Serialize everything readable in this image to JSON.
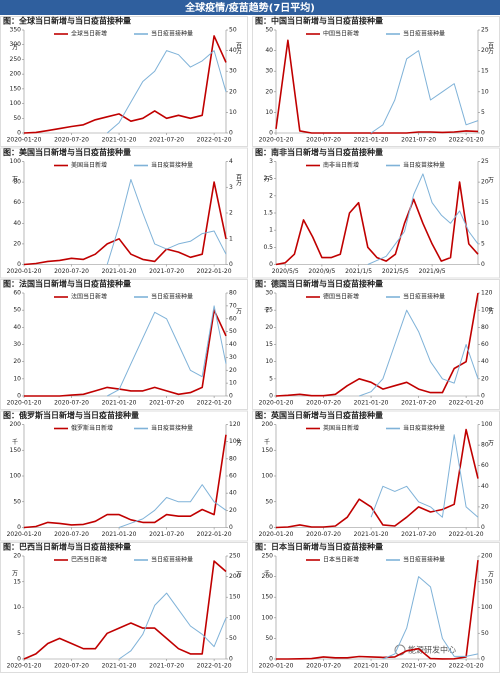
{
  "header": {
    "title": "全球疫情/疫苗趋势(7日平均)"
  },
  "watermark": "能源研发中心",
  "chart_data": [
    {
      "type": "line",
      "title": "图：全球当日新增与当日疫苗接种量",
      "categories": [
        "2020-01-20",
        null,
        null,
        null,
        "2020-07-20",
        null,
        null,
        null,
        "2021-01-20",
        null,
        null,
        null,
        "2021-07-20",
        null,
        null,
        null,
        "2022-01-20",
        null
      ],
      "series": [
        {
          "name": "全球当日新增",
          "color": "#c00000",
          "values": [
            0,
            2,
            8,
            15,
            22,
            28,
            45,
            55,
            65,
            40,
            50,
            75,
            50,
            60,
            50,
            60,
            330,
            240
          ]
        },
        {
          "name": "当日疫苗接种量",
          "color": "#7fb2d8",
          "axis": "y2",
          "values": [
            null,
            null,
            null,
            null,
            null,
            null,
            null,
            0,
            5,
            15,
            25,
            30,
            40,
            38,
            32,
            35,
            40,
            20
          ]
        }
      ],
      "ylim": [
        0,
        350
      ],
      "yticks": [
        0,
        50,
        100,
        150,
        200,
        250,
        300,
        350
      ],
      "y_unit": "万",
      "y2lim": [
        0,
        50
      ],
      "y2ticks": [
        0,
        10,
        20,
        30,
        40,
        50
      ],
      "y2_unit": "百万"
    },
    {
      "type": "line",
      "title": "图：中国当日新增与当日疫苗接种量",
      "categories": [
        "2020-01-20",
        null,
        null,
        null,
        "2020-07-20",
        null,
        null,
        null,
        "2021-01-20",
        null,
        null,
        null,
        "2021-07-20",
        null,
        null,
        null,
        "2022-01-20",
        null
      ],
      "series": [
        {
          "name": "中国当日新增",
          "color": "#c00000",
          "values": [
            2,
            45,
            1,
            0,
            0,
            0,
            0,
            0,
            0,
            0,
            0,
            0,
            0.5,
            0.5,
            0.3,
            0.5,
            1,
            0.8
          ]
        },
        {
          "name": "当日疫苗接种量",
          "color": "#7fb2d8",
          "axis": "y2",
          "values": [
            null,
            null,
            null,
            null,
            null,
            null,
            null,
            null,
            0,
            2,
            8,
            18,
            20,
            8,
            10,
            12,
            2,
            3
          ]
        }
      ],
      "ylim": [
        0,
        50
      ],
      "yticks": [
        0,
        10,
        20,
        30,
        40,
        50
      ],
      "y2lim": [
        0,
        25
      ],
      "y2ticks": [
        0,
        5,
        10,
        15,
        20,
        25
      ],
      "y2_unit": "百万"
    },
    {
      "type": "line",
      "title": "图：美国当日新增与当日疫苗接种量",
      "categories": [
        "2020-01-20",
        null,
        null,
        null,
        "2020-07-20",
        null,
        null,
        null,
        "2021-01-20",
        null,
        null,
        null,
        "2021-07-20",
        null,
        null,
        null,
        "2022-01-20",
        null
      ],
      "series": [
        {
          "name": "美国当日新增",
          "color": "#c00000",
          "values": [
            0,
            1,
            3,
            4,
            6,
            5,
            10,
            20,
            25,
            10,
            5,
            3,
            15,
            12,
            7,
            10,
            80,
            25
          ]
        },
        {
          "name": "当日疫苗接种量",
          "color": "#7fb2d8",
          "axis": "y2",
          "values": [
            null,
            null,
            null,
            null,
            null,
            null,
            null,
            0,
            1.5,
            3.3,
            2,
            0.8,
            0.6,
            0.8,
            0.9,
            1.2,
            1.3,
            0.4
          ]
        }
      ],
      "ylim": [
        0,
        100
      ],
      "yticks": [
        0,
        20,
        40,
        60,
        80,
        100
      ],
      "y_unit": "万",
      "y2lim": [
        0,
        4
      ],
      "y2ticks": [
        0,
        1,
        2,
        3,
        4
      ],
      "y2_unit": "百万"
    },
    {
      "type": "line",
      "title": "图：南非当日新增与当日疫苗接种量",
      "categories": [
        null,
        "2020/5/5",
        null,
        null,
        null,
        "2020/9/5",
        null,
        null,
        null,
        "2021/1/5",
        null,
        null,
        null,
        "2021/5/5",
        null,
        null,
        null,
        "2021/9/5",
        null,
        null,
        null,
        null,
        null
      ],
      "series": [
        {
          "name": "南非当日新增",
          "color": "#c00000",
          "values": [
            0,
            0.05,
            0.3,
            1.3,
            0.8,
            0.2,
            0.2,
            0.3,
            1.5,
            1.8,
            0.5,
            0.2,
            0.1,
            0.3,
            1.2,
            1.9,
            1.2,
            0.6,
            0.1,
            0.2,
            2.4,
            0.6,
            0.3
          ]
        },
        {
          "name": "当日疫苗接种量",
          "color": "#7fb2d8",
          "axis": "y2",
          "values": [
            null,
            null,
            null,
            null,
            null,
            null,
            null,
            null,
            null,
            null,
            0,
            1,
            2,
            5,
            8,
            17,
            22,
            15,
            12,
            10,
            13,
            8,
            5
          ]
        }
      ],
      "ylim": [
        0,
        3
      ],
      "yticks": [
        0,
        0.5,
        1,
        1.5,
        2,
        2.5,
        3
      ],
      "y_unit": "万",
      "y2lim": [
        0,
        25
      ],
      "y2ticks": [
        0,
        5,
        10,
        15,
        20,
        25
      ],
      "y2_unit": "万"
    },
    {
      "type": "line",
      "title": "图：法国当日新增与当日疫苗接种量",
      "categories": [
        "2020-01-20",
        null,
        null,
        null,
        "2020-07-20",
        null,
        null,
        null,
        "2021-01-20",
        null,
        null,
        null,
        "2021-07-20",
        null,
        null,
        null,
        "2022-01-20",
        null
      ],
      "series": [
        {
          "name": "法国当日新增",
          "color": "#c00000",
          "values": [
            0,
            0,
            0,
            0,
            0.5,
            1,
            3,
            5,
            4,
            3,
            3,
            5,
            3,
            1,
            2,
            5,
            50,
            35
          ]
        },
        {
          "name": "当日疫苗接种量",
          "color": "#7fb2d8",
          "axis": "y2",
          "values": [
            null,
            null,
            null,
            null,
            null,
            null,
            null,
            0,
            5,
            25,
            45,
            65,
            60,
            40,
            20,
            15,
            70,
            25
          ]
        }
      ],
      "ylim": [
        0,
        60
      ],
      "yticks": [
        0,
        10,
        20,
        30,
        40,
        50,
        60
      ],
      "y2lim": [
        0,
        80
      ],
      "y2ticks": [
        0,
        10,
        20,
        30,
        40,
        50,
        60,
        70,
        80
      ],
      "y2_unit": "万"
    },
    {
      "type": "line",
      "title": "图：德国当日新增与当日疫苗接种量",
      "categories": [
        "2020-01-20",
        null,
        null,
        null,
        "2020-07-20",
        null,
        null,
        null,
        "2021-01-20",
        null,
        null,
        null,
        "2021-07-20",
        null,
        null,
        null,
        "2022-01-20",
        null
      ],
      "series": [
        {
          "name": "德国当日新增",
          "color": "#c00000",
          "values": [
            0,
            0.2,
            0.5,
            0.1,
            0.1,
            0.5,
            3,
            5,
            4,
            2,
            3,
            4,
            2,
            1,
            1,
            8,
            10,
            30
          ]
        },
        {
          "name": "当日疫苗接种量",
          "color": "#7fb2d8",
          "axis": "y2",
          "values": [
            null,
            null,
            null,
            null,
            null,
            null,
            null,
            0,
            5,
            20,
            60,
            100,
            75,
            40,
            20,
            15,
            60,
            20
          ]
        }
      ],
      "ylim": [
        0,
        30
      ],
      "yticks": [
        0,
        5,
        10,
        15,
        20,
        25,
        30
      ],
      "y_unit": "千",
      "y2lim": [
        0,
        120
      ],
      "y2ticks": [
        0,
        20,
        40,
        60,
        80,
        100,
        120
      ],
      "y2_unit": "万"
    },
    {
      "type": "line",
      "title": "图：俄罗斯当日新增与当日疫苗接种量",
      "categories": [
        "2020-01-20",
        null,
        null,
        null,
        "2020-07-20",
        null,
        null,
        null,
        "2021-01-20",
        null,
        null,
        null,
        "2021-07-20",
        null,
        null,
        null,
        "2022-01-20",
        null
      ],
      "series": [
        {
          "name": "俄罗斯当日新增",
          "color": "#c00000",
          "values": [
            0,
            2,
            10,
            8,
            5,
            6,
            12,
            25,
            25,
            15,
            10,
            10,
            25,
            22,
            22,
            35,
            25,
            180
          ]
        },
        {
          "name": "当日疫苗接种量",
          "color": "#7fb2d8",
          "axis": "y2",
          "values": [
            null,
            null,
            null,
            null,
            null,
            null,
            null,
            null,
            0,
            5,
            10,
            20,
            35,
            30,
            30,
            50,
            30,
            20
          ]
        }
      ],
      "ylim": [
        0,
        200
      ],
      "yticks": [
        0,
        50,
        100,
        150,
        200
      ],
      "y_unit": "千",
      "y2lim": [
        0,
        120
      ],
      "y2ticks": [
        0,
        20,
        40,
        60,
        80,
        100,
        120
      ],
      "y2_unit": "万"
    },
    {
      "type": "line",
      "title": "图：英国当日新增与当日疫苗接种量",
      "categories": [
        "2020-01-20",
        null,
        null,
        null,
        "2020-07-20",
        null,
        null,
        null,
        "2021-01-20",
        null,
        null,
        null,
        "2021-07-20",
        null,
        null,
        null,
        "2022-01-20",
        null
      ],
      "series": [
        {
          "name": "英国当日新增",
          "color": "#c00000",
          "values": [
            0,
            1,
            5,
            1,
            1,
            3,
            20,
            55,
            40,
            5,
            3,
            20,
            40,
            30,
            35,
            45,
            190,
            95
          ]
        },
        {
          "name": "当日疫苗接种量",
          "color": "#7fb2d8",
          "axis": "y2",
          "values": [
            null,
            null,
            null,
            null,
            null,
            null,
            null,
            null,
            10,
            40,
            35,
            40,
            25,
            20,
            10,
            90,
            20,
            10
          ]
        }
      ],
      "ylim": [
        0,
        200
      ],
      "yticks": [
        0,
        50,
        100,
        150,
        200
      ],
      "y_unit": "千",
      "y2lim": [
        0,
        100
      ],
      "y2ticks": [
        0,
        20,
        40,
        60,
        80,
        100
      ],
      "y2_unit": "万"
    },
    {
      "type": "line",
      "title": "图：巴西当日新增与当日疫苗接种量",
      "categories": [
        "2020-01-20",
        null,
        null,
        null,
        "2020-07-20",
        null,
        null,
        null,
        "2021-01-20",
        null,
        null,
        null,
        "2021-07-20",
        null,
        null,
        null,
        "2022-01-20",
        null
      ],
      "series": [
        {
          "name": "巴西当日新增",
          "color": "#c00000",
          "values": [
            0,
            1,
            3,
            4,
            3,
            2,
            2,
            5,
            6,
            7,
            6,
            6,
            4,
            2,
            1,
            1,
            19,
            17
          ]
        },
        {
          "name": "当日疫苗接种量",
          "color": "#7fb2d8",
          "axis": "y2",
          "values": [
            null,
            null,
            null,
            null,
            null,
            null,
            null,
            null,
            0,
            20,
            60,
            130,
            160,
            120,
            80,
            60,
            30,
            100
          ]
        }
      ],
      "ylim": [
        0,
        20
      ],
      "yticks": [
        0,
        5,
        10,
        15,
        20
      ],
      "y_unit": "万",
      "y2lim": [
        0,
        250
      ],
      "y2ticks": [
        0,
        50,
        100,
        150,
        200,
        250
      ],
      "y2_unit": "万"
    },
    {
      "type": "line",
      "title": "图：日本当日新增与当日疫苗接种量",
      "categories": [
        "2020-01-20",
        null,
        null,
        null,
        "2020-07-20",
        null,
        null,
        null,
        "2021-01-20",
        null,
        null,
        null,
        "2021-07-20",
        null,
        null,
        null,
        "2022-01-20",
        null
      ],
      "series": [
        {
          "name": "日本当日新增",
          "color": "#c00000",
          "values": [
            0,
            0,
            0.5,
            1,
            5,
            3,
            3,
            6,
            5,
            4,
            5,
            20,
            25,
            1,
            0.3,
            0.5,
            5,
            240
          ]
        },
        {
          "name": "当日疫苗接种量",
          "color": "#7fb2d8",
          "axis": "y2",
          "values": [
            null,
            null,
            null,
            null,
            null,
            null,
            null,
            null,
            null,
            0,
            10,
            60,
            160,
            140,
            40,
            5,
            5,
            10
          ]
        }
      ],
      "ylim": [
        0,
        250
      ],
      "yticks": [
        0,
        50,
        100,
        150,
        200,
        250
      ],
      "y_unit": "千",
      "y2lim": [
        0,
        200
      ],
      "y2ticks": [
        0,
        50,
        100,
        150,
        200
      ],
      "y2_unit": "万"
    }
  ]
}
